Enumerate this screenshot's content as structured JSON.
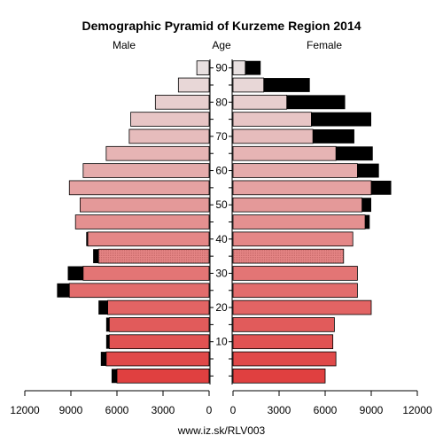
{
  "chart_data": {
    "type": "bar",
    "title": "Demographic Pyramid of Kurzeme Region 2014",
    "left_label": "Male",
    "center_label": "Age",
    "right_label": "Female",
    "footer": "www.iz.sk/RLV003",
    "age_ticks": [
      "10",
      "20",
      "30",
      "40",
      "50",
      "60",
      "70",
      "80",
      "90"
    ],
    "x_ticks": [
      "12000",
      "9000",
      "6000",
      "3000",
      "0",
      "3000",
      "6000",
      "9000",
      "12000"
    ],
    "xlim": [
      0,
      12000
    ],
    "age_groups": [
      "0-4",
      "5-9",
      "10-14",
      "15-19",
      "20-24",
      "25-29",
      "30-34",
      "35-39",
      "40-44",
      "45-49",
      "50-54",
      "55-59",
      "60-64",
      "65-69",
      "70-74",
      "75-79",
      "80-84",
      "85-89",
      "90+"
    ],
    "male": {
      "base": [
        6000,
        6700,
        6500,
        6500,
        6600,
        9100,
        8200,
        7200,
        7900,
        8700,
        8400,
        9100,
        8200,
        6700,
        5200,
        5100,
        3500,
        2000,
        800
      ],
      "excess": [
        350,
        350,
        200,
        200,
        600,
        800,
        1000,
        350,
        100,
        0,
        0,
        0,
        0,
        0,
        0,
        0,
        0,
        0,
        0
      ]
    },
    "female": {
      "base": [
        6000,
        6700,
        6500,
        6600,
        9000,
        8100,
        8100,
        7200,
        7800,
        8600,
        8400,
        9000,
        8100,
        6700,
        5200,
        5100,
        3500,
        2000,
        800
      ],
      "excess": [
        0,
        0,
        0,
        0,
        0,
        0,
        0,
        0,
        0,
        300,
        600,
        1300,
        1400,
        2400,
        2700,
        3900,
        3800,
        3000,
        1000
      ]
    },
    "colors": {
      "excess": "#000000",
      "dotted_bar": "#e48484",
      "bar_outline": "#000000",
      "gradient_young": "#e04040",
      "gradient_old": "#e8e0e0"
    }
  }
}
